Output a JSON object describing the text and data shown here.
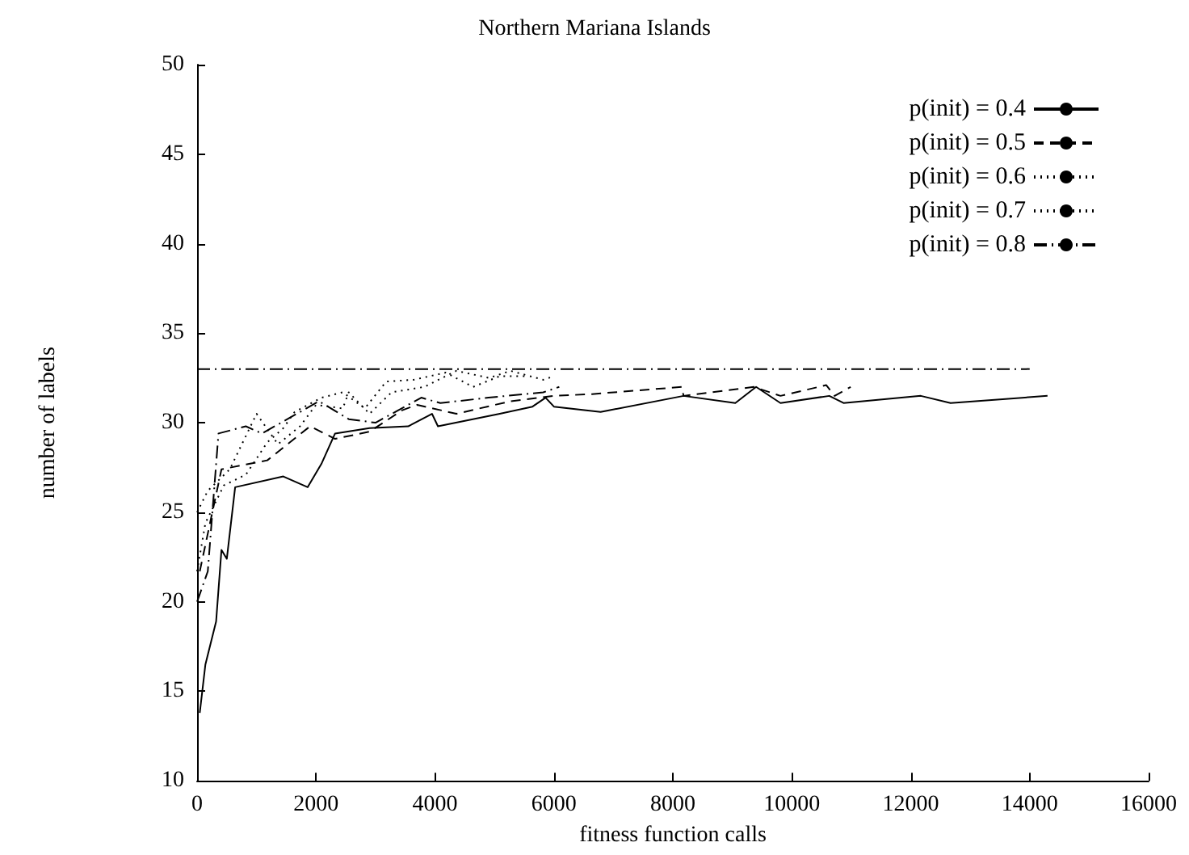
{
  "chart_data": {
    "type": "line",
    "title": "Northern Mariana Islands",
    "xlabel": "fitness function calls",
    "ylabel": "number of labels",
    "xlim": [
      0,
      16000
    ],
    "xticks": [
      0,
      2000,
      4000,
      6000,
      8000,
      10000,
      12000,
      14000,
      16000
    ],
    "ylim": [
      10,
      50
    ],
    "yticks": [
      10,
      15,
      20,
      25,
      30,
      35,
      40,
      45,
      50
    ],
    "grid": false,
    "legend": "top right",
    "marker": "none",
    "series": [
      {
        "name": "p(init) = 0.4",
        "color": "#000000",
        "line_style": "solid",
        "x": [
          45,
          140,
          320,
          410,
          500,
          640,
          1450,
          1860,
          2090,
          2320,
          2900,
          3550,
          3950,
          4050,
          5090,
          5640,
          5860,
          6000,
          6785,
          8180,
          9050,
          9400,
          9810,
          10630,
          10870,
          12170,
          12670,
          14300
        ],
        "values": [
          13.8,
          16.5,
          18.9,
          22.9,
          22.4,
          26.4,
          27,
          26.4,
          27.7,
          29.4,
          29.7,
          29.8,
          30.5,
          29.8,
          30.5,
          30.9,
          31.4,
          30.9,
          30.6,
          31.5,
          31.1,
          32,
          31.1,
          31.5,
          31.1,
          31.5,
          31.1,
          31.5
        ]
      },
      {
        "name": "p(init) = 0.5",
        "color": "#000000",
        "line_style": "dashed",
        "x": [
          45,
          410,
          1180,
          1900,
          2320,
          2900,
          3450,
          3700,
          4360,
          5270,
          6000,
          6640,
          8150,
          8180,
          9360,
          9810,
          10580,
          10720,
          10990
        ],
        "values": [
          21.7,
          27.4,
          27.9,
          29.8,
          29.1,
          29.5,
          30.7,
          31,
          30.5,
          31.2,
          31.5,
          31.6,
          32,
          31.5,
          32,
          31.5,
          32.1,
          31.5,
          32
        ]
      },
      {
        "name": "p(init) = 0.6",
        "color": "#000000",
        "line_style": "dotted",
        "x": [
          0,
          140,
          450,
          820,
          1180,
          1450,
          1640,
          2090,
          2450,
          2820,
          3180,
          3640,
          4180,
          4640,
          5090,
          5550
        ],
        "values": [
          21.7,
          24.4,
          26.5,
          27.1,
          28.9,
          29.7,
          30.6,
          31.4,
          31.7,
          30.8,
          32.3,
          32.4,
          32.8,
          32,
          32.6,
          32.6
        ]
      },
      {
        "name": "p(init) = 0.7",
        "color": "#000000",
        "line_style": "dotted",
        "x": [
          0,
          180,
          550,
          1000,
          1360,
          1730,
          2000,
          2450,
          2550,
          2900,
          3270,
          3820,
          4360,
          4910,
          5270,
          5820,
          6000
        ],
        "values": [
          25,
          26.2,
          27.4,
          30.5,
          28.8,
          29.8,
          31,
          30.8,
          31.7,
          30.5,
          31.7,
          32,
          32.9,
          32.5,
          32.9,
          32.4,
          32.6
        ]
      },
      {
        "name": "p(init) = 0.8",
        "color": "#000000",
        "line_style": "dashdot",
        "x": [
          0,
          180,
          360,
          820,
          1090,
          2050,
          2550,
          3000,
          3770,
          4090,
          4900,
          5820,
          6090
        ],
        "values": [
          20,
          21.7,
          29.4,
          29.8,
          29.4,
          31.2,
          30.2,
          30,
          31.4,
          31.1,
          31.4,
          31.7,
          32
        ]
      },
      {
        "color": "#000000",
        "line_style": "dashdot",
        "x": [
          0,
          14000
        ],
        "values": [
          33,
          33
        ]
      }
    ]
  }
}
